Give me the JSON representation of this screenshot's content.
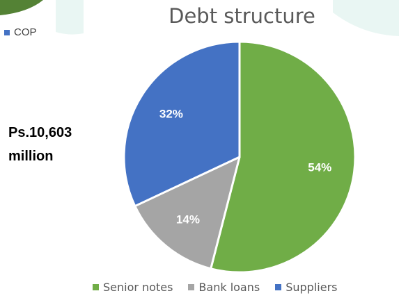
{
  "previous_legend": {
    "label": "COP",
    "color": "#4472C4"
  },
  "total": {
    "line1": "Ps.10,603",
    "line2": "million"
  },
  "chart_data": {
    "type": "pie",
    "title": "Debt structure",
    "slices": [
      {
        "name": "Senior notes",
        "value": 54,
        "label": "54%",
        "color": "#70AD47"
      },
      {
        "name": "Bank loans",
        "value": 14,
        "label": "14%",
        "color": "#A5A5A5"
      },
      {
        "name": "Suppliers",
        "value": 32,
        "label": "32%",
        "color": "#4472C4"
      }
    ],
    "start_angle_deg": 0,
    "direction": "clockwise",
    "data_labels": "inside",
    "legend": "bottom"
  }
}
